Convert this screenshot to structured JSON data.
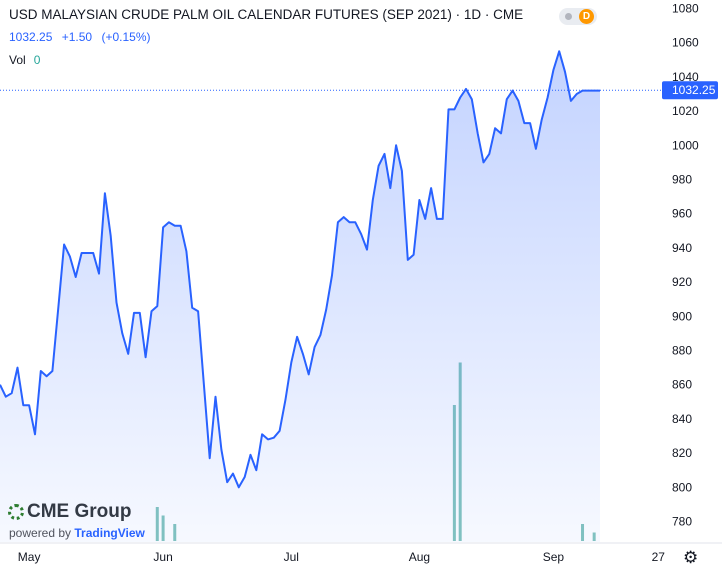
{
  "header": {
    "title": "USD MALAYSIAN CRUDE PALM OIL CALENDAR FUTURES (SEP 2021) · 1D · CME",
    "last_price": "1032.25",
    "change": "+1.50",
    "change_pct": "(+0.15%)",
    "volume_label": "Vol",
    "volume_value": "0",
    "badge": "D"
  },
  "branding": {
    "logo_text": "CME Group",
    "powered_by": "powered by",
    "platform": "TradingView"
  },
  "icons": {
    "settings": "gear-icon",
    "logo": "globe-icon"
  },
  "colors": {
    "line": "#2962ff",
    "area_top": "#2962ff",
    "volume": "#84c5be",
    "price_badge": "#2962ff",
    "grid": "#f0f3fa"
  },
  "chart_data": {
    "type": "area",
    "ylim": [
      768,
      1085
    ],
    "y_ticks": [
      780,
      800,
      820,
      840,
      860,
      880,
      900,
      920,
      940,
      960,
      980,
      1000,
      1020,
      1040,
      1060,
      1080
    ],
    "x_ticks": [
      {
        "label": "May",
        "x": 5
      },
      {
        "label": "Jun",
        "x": 28
      },
      {
        "label": "Jul",
        "x": 50
      },
      {
        "label": "Aug",
        "x": 72
      },
      {
        "label": "Sep",
        "x": 95
      },
      {
        "label": "27",
        "x": 113
      }
    ],
    "current_price": 1032.25,
    "current_price_label": "1032.25",
    "grid": false,
    "series": [
      {
        "type": "area",
        "x": [
          0,
          1,
          2,
          3,
          4,
          5,
          6,
          7,
          8,
          9,
          10,
          11,
          12,
          13,
          14,
          15,
          16,
          17,
          18,
          19,
          20,
          21,
          22,
          23,
          24,
          25,
          26,
          27,
          28,
          29,
          30,
          31,
          32,
          33,
          34,
          35,
          36,
          37,
          38,
          39,
          40,
          41,
          42,
          43,
          44,
          45,
          46,
          47,
          48,
          49,
          50,
          51,
          52,
          53,
          54,
          55,
          56,
          57,
          58,
          59,
          60,
          61,
          62,
          63,
          64,
          65,
          66,
          67,
          68,
          69,
          70,
          71,
          72,
          73,
          74,
          75,
          76,
          77,
          78,
          79,
          80,
          81,
          82,
          83,
          84,
          85,
          86,
          87,
          88,
          89,
          90,
          91,
          92,
          93,
          94,
          95,
          96,
          97,
          98,
          99,
          100,
          101,
          102,
          103
        ],
        "y": [
          860,
          853,
          855,
          870,
          848,
          848,
          831,
          868,
          865,
          868,
          905,
          942,
          935,
          923,
          937,
          937,
          937,
          925,
          972,
          947,
          908,
          890,
          878,
          902,
          902,
          876,
          903,
          906,
          952,
          955,
          953,
          953,
          938,
          905,
          903,
          860,
          817,
          853,
          822,
          803,
          808,
          800,
          806,
          819,
          810,
          831,
          828,
          829,
          833,
          851,
          873,
          888,
          878,
          866,
          882,
          889,
          904,
          924,
          955,
          958,
          955,
          955,
          948,
          939,
          968,
          988,
          995,
          975,
          1000,
          985,
          933,
          936,
          968,
          957,
          975,
          957,
          957,
          1021,
          1021,
          1028,
          1033,
          1027,
          1007,
          990,
          995,
          1010,
          1007,
          1027,
          1032,
          1026,
          1013,
          1013,
          998,
          1015,
          1028,
          1044,
          1055,
          1043,
          1026,
          1030,
          1032,
          1032,
          1032,
          1032
        ],
        "volume": [
          0,
          0,
          0,
          0,
          0,
          0,
          0,
          0,
          0,
          0,
          0,
          0,
          0,
          0,
          0,
          0,
          0,
          0,
          0,
          0,
          0,
          0,
          0,
          0,
          0,
          0,
          0,
          4,
          3,
          0,
          2,
          0,
          0,
          0,
          0,
          0,
          0,
          0,
          0,
          0,
          0,
          0,
          0,
          0,
          0,
          0,
          0,
          0,
          0,
          0,
          0,
          0,
          0,
          0,
          0,
          0,
          0,
          0,
          0,
          0,
          0,
          0,
          0,
          0,
          0,
          0,
          0,
          0,
          0,
          0,
          0,
          0,
          0,
          0,
          0,
          0,
          0,
          0,
          16,
          21,
          0,
          0,
          0,
          0,
          0,
          0,
          0,
          0,
          0,
          0,
          0,
          0,
          0,
          0,
          0,
          0,
          0,
          0,
          0,
          0,
          2,
          0,
          1,
          0
        ]
      }
    ]
  }
}
